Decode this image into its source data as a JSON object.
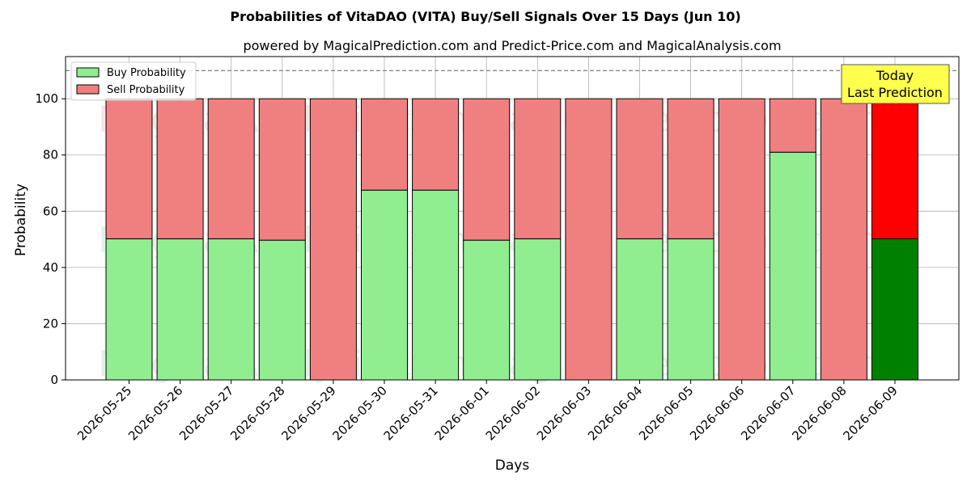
{
  "chart_data": {
    "type": "bar",
    "stacked": true,
    "title": "Probabilities of VitaDAO (VITA) Buy/Sell Signals Over 15 Days (Jun 10)",
    "subtitle": "powered by MagicalPrediction.com and Predict-Price.com and MagicalAnalysis.com",
    "xlabel": "Days",
    "ylabel": "Probability",
    "ylim": [
      0,
      115
    ],
    "yticks": [
      0,
      20,
      40,
      60,
      80,
      100
    ],
    "grid": true,
    "legend_position": "top-left",
    "categories": [
      "2026-05-25",
      "2026-05-26",
      "2026-05-27",
      "2026-05-28",
      "2026-05-29",
      "2026-05-30",
      "2026-05-31",
      "2026-06-01",
      "2026-06-02",
      "2026-06-03",
      "2026-06-04",
      "2026-06-05",
      "2026-06-06",
      "2026-06-07",
      "2026-06-08",
      "2026-06-09"
    ],
    "series": [
      {
        "name": "Buy Probability",
        "color": "#90ee90",
        "values": [
          50.2,
          50.2,
          50.2,
          49.7,
          0,
          67.5,
          67.5,
          49.7,
          50.2,
          0,
          50.2,
          50.2,
          0,
          81.0,
          0,
          50.2
        ]
      },
      {
        "name": "Sell Probability",
        "color": "#f08080",
        "values": [
          49.8,
          49.8,
          49.8,
          50.3,
          100,
          32.5,
          32.5,
          50.3,
          49.8,
          100,
          49.8,
          49.8,
          100,
          19.0,
          100,
          49.8
        ]
      }
    ],
    "highlight": {
      "index": 15,
      "buy_color": "#008000",
      "sell_color": "#ff0000"
    },
    "reference_line": {
      "y": 110,
      "style": "dashed",
      "color": "#808080"
    },
    "annotation": {
      "lines": [
        "Today",
        "Last Prediction"
      ],
      "background": "#ffff4d"
    },
    "watermarks": [
      "MagicalAnalysis.com",
      "MagicalPrediction.com"
    ]
  }
}
